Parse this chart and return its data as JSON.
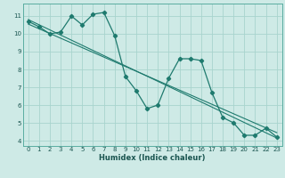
{
  "title": "",
  "xlabel": "Humidex (Indice chaleur)",
  "bg_color": "#ceeae6",
  "grid_color": "#a8d4ce",
  "line_color": "#1e7a6e",
  "xlim": [
    -0.5,
    23.5
  ],
  "ylim": [
    3.7,
    11.7
  ],
  "yticks": [
    4,
    5,
    6,
    7,
    8,
    9,
    10,
    11
  ],
  "xticks": [
    0,
    1,
    2,
    3,
    4,
    5,
    6,
    7,
    8,
    9,
    10,
    11,
    12,
    13,
    14,
    15,
    16,
    17,
    18,
    19,
    20,
    21,
    22,
    23
  ],
  "series1_x": [
    0,
    1,
    2,
    3,
    4,
    5,
    6,
    7,
    8,
    9,
    10,
    11,
    12,
    13,
    14,
    15,
    16,
    17,
    18,
    19,
    20,
    21,
    22,
    23
  ],
  "series1_y": [
    10.7,
    10.4,
    10.0,
    10.1,
    11.0,
    10.5,
    11.1,
    11.2,
    9.9,
    7.6,
    6.8,
    5.8,
    6.0,
    7.5,
    8.6,
    8.6,
    8.5,
    6.7,
    5.3,
    5.0,
    4.3,
    4.3,
    4.7,
    4.2
  ],
  "line2_x": [
    0,
    23
  ],
  "line2_y": [
    10.8,
    4.15
  ],
  "line3_x": [
    0,
    23
  ],
  "line3_y": [
    10.55,
    4.45
  ]
}
